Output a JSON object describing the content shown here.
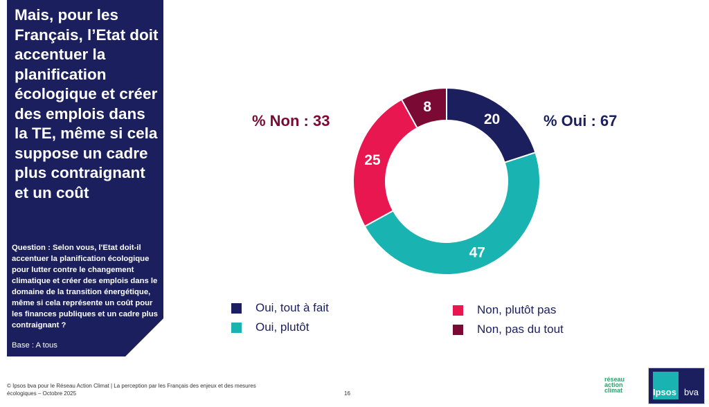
{
  "panel": {
    "title": "Mais, pour les Français, l’Etat doit accentuer la planification écologique et créer des emplois dans la TE, même si cela suppose un cadre plus contraignant et un coût",
    "question": "Question : Selon vous, l'Etat doit-il accentuer la planification écologique pour lutter contre le changement climatique et créer des emplois dans le domaine de la transition énergétique, même si cela représente un coût pour les finances publiques et un cadre plus contraignant ?",
    "base": "Base : A tous"
  },
  "kpis": {
    "non": "% Non : 33",
    "oui": "% Oui : 67"
  },
  "chart_data": {
    "type": "pie",
    "donut": true,
    "categories": [
      "Oui, tout à fait",
      "Oui, plutôt",
      "Non, plutôt pas",
      "Non, pas du tout"
    ],
    "values": [
      20,
      47,
      25,
      8
    ],
    "labels": [
      "20",
      "47",
      "25",
      "8"
    ],
    "colors": [
      "#1b1f5e",
      "#19b3b1",
      "#e8174f",
      "#7a0a33"
    ],
    "legend": "bottom"
  },
  "footer": {
    "text": "© Ipsos bva pour le Réseau Action Climat | La perception par les Français des enjeux et des mesures écologiques – Octobre 2025",
    "page": "16"
  },
  "logos": {
    "rac": "réseau action climat france",
    "ipsos": "Ipsos",
    "bva": "bva"
  }
}
